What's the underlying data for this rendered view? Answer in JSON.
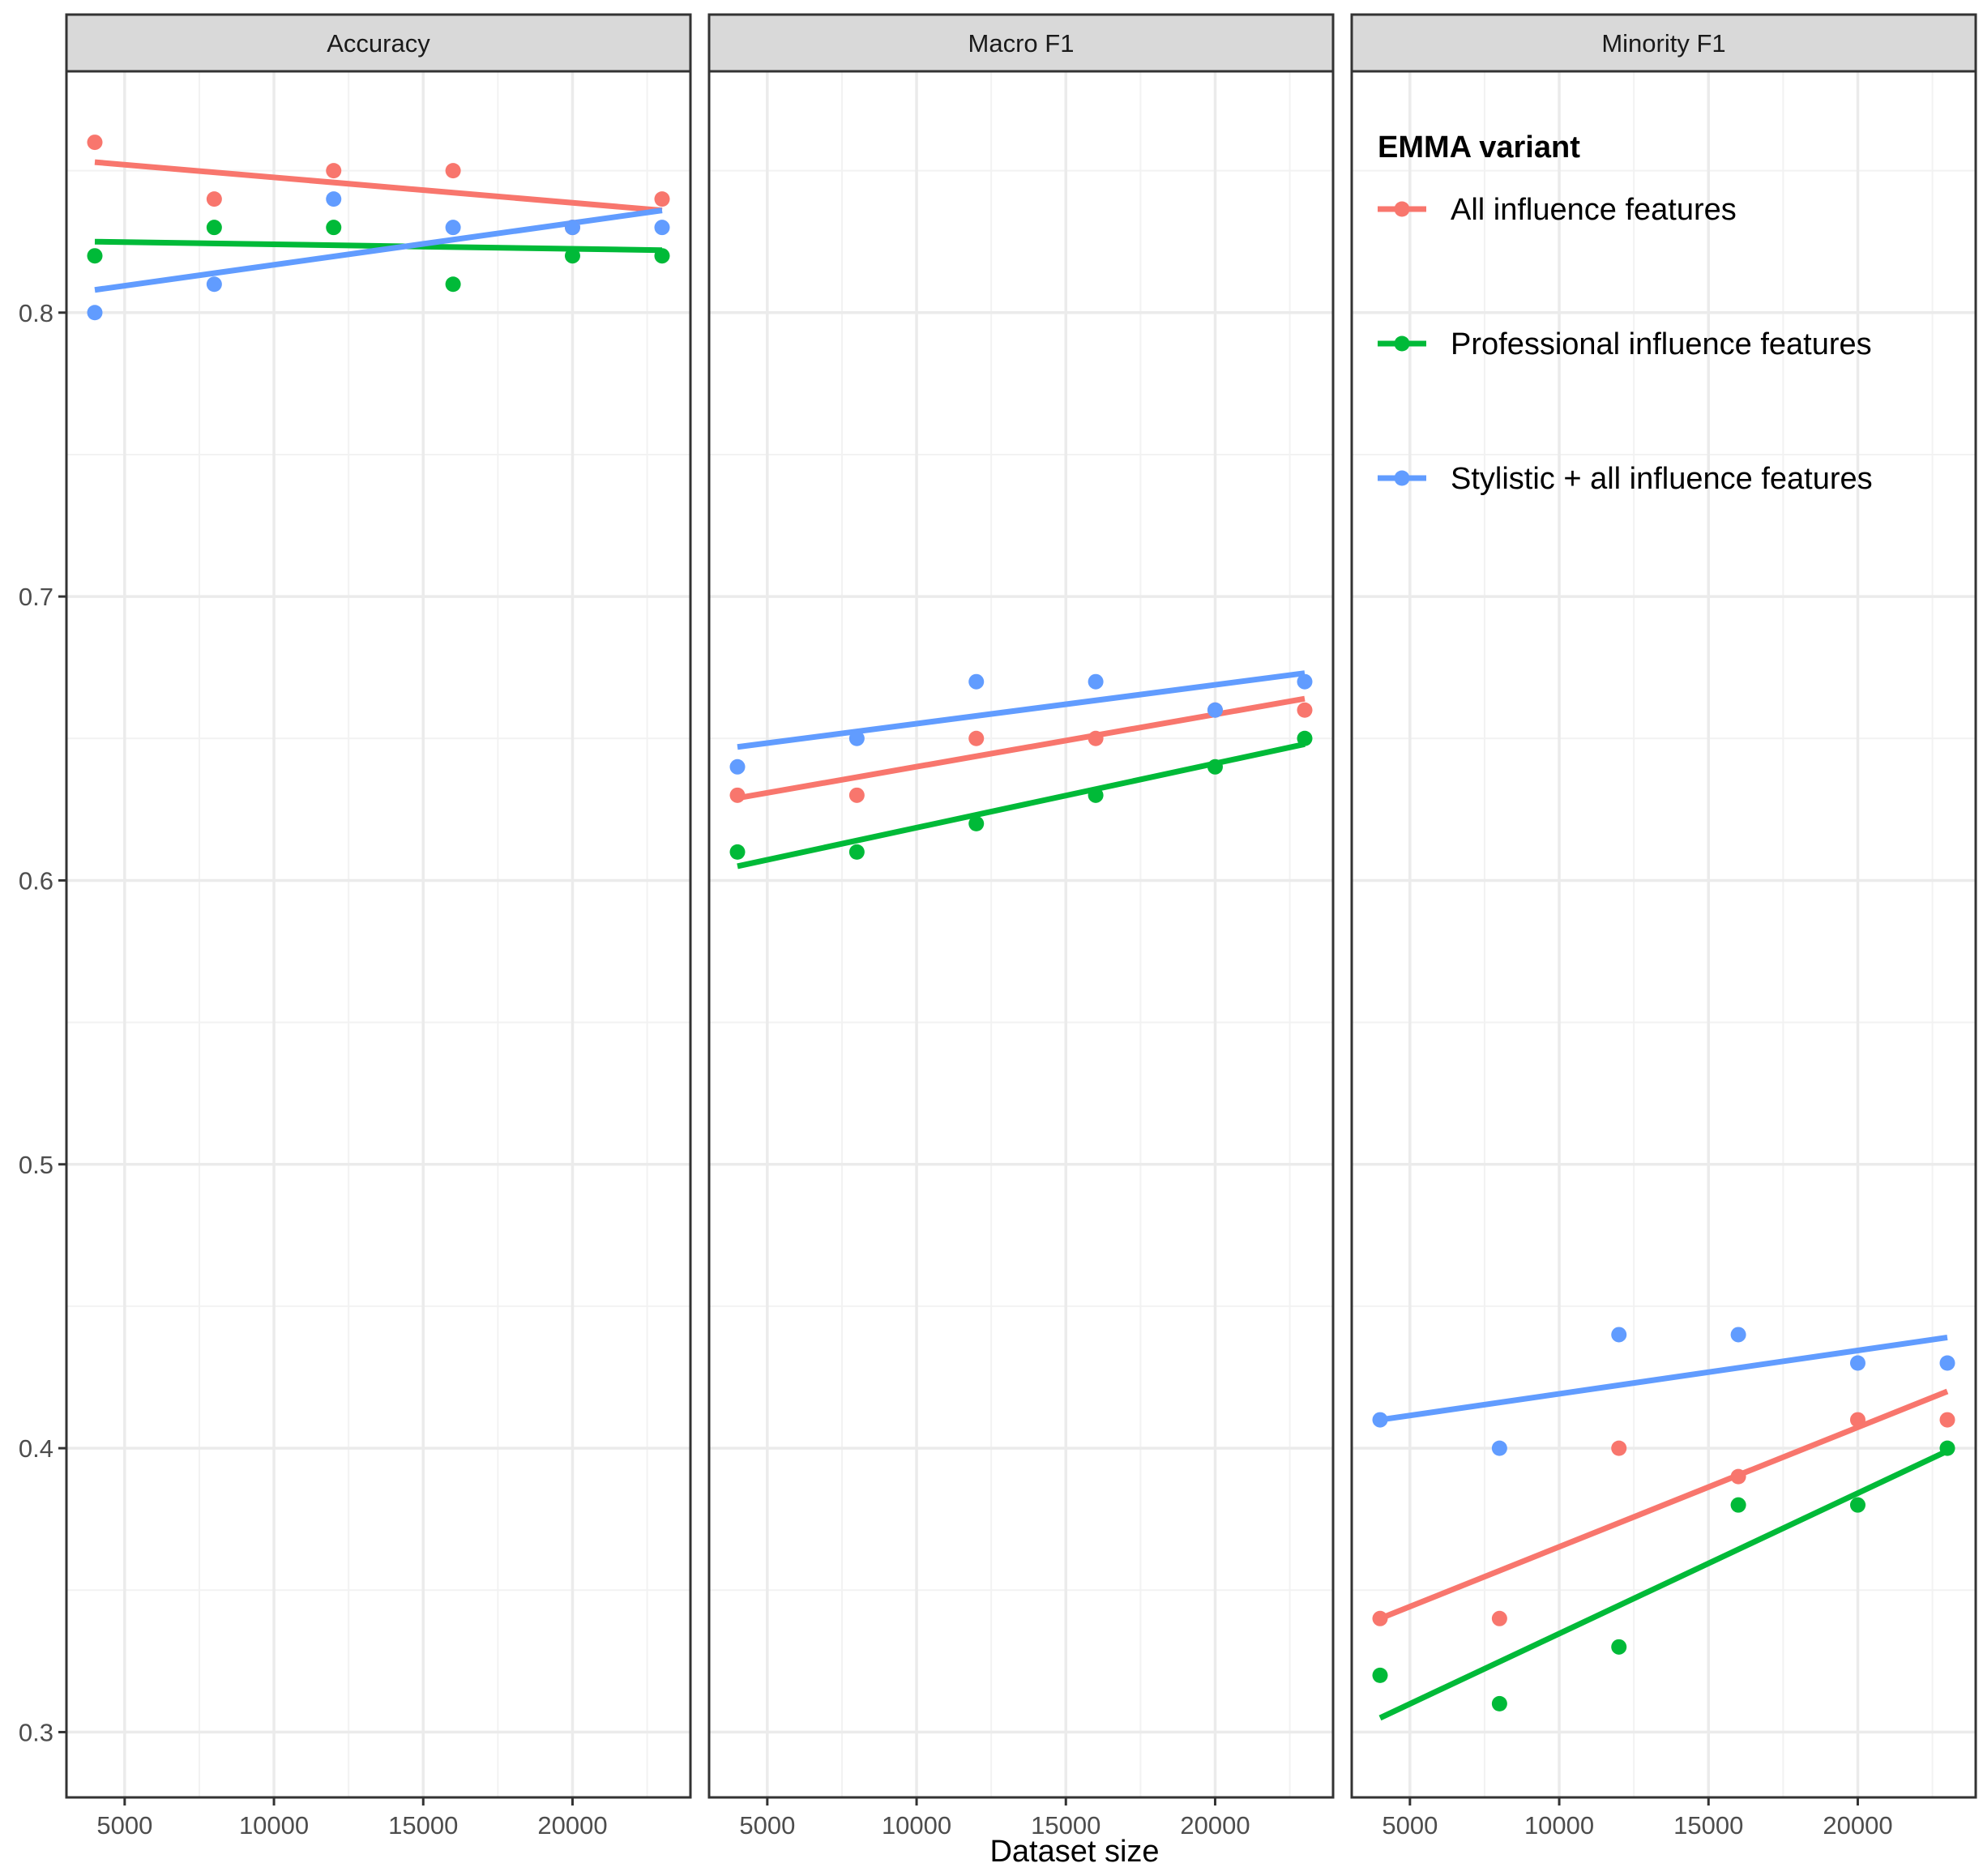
{
  "chart_data": {
    "type": "scatter",
    "facets": [
      "Accuracy",
      "Macro F1",
      "Minority F1"
    ],
    "xlabel": "Dataset size",
    "ylabel": "",
    "x_ticks": [
      5000,
      10000,
      15000,
      20000
    ],
    "y_ticks": [
      0.3,
      0.4,
      0.5,
      0.6,
      0.7,
      0.8
    ],
    "ylim": [
      0.277,
      0.885
    ],
    "xlim": [
      3050,
      23950
    ],
    "grid": true,
    "legend_title": "EMMA variant",
    "legend_position": "inside-top-right",
    "x": [
      4000,
      8000,
      12000,
      16000,
      20000,
      23000
    ],
    "series": [
      {
        "name": "All influence features",
        "color": "#F8766D",
        "values": {
          "Accuracy": [
            0.86,
            0.84,
            0.85,
            0.85,
            0.83,
            0.84
          ],
          "Macro F1": [
            0.63,
            0.63,
            0.65,
            0.65,
            0.66,
            0.66
          ],
          "Minority F1": [
            0.34,
            0.34,
            0.4,
            0.39,
            0.41,
            0.41
          ]
        },
        "fit": {
          "Accuracy": [
            0.853,
            0.836
          ],
          "Macro F1": [
            0.629,
            0.664
          ],
          "Minority F1": [
            0.34,
            0.42
          ]
        }
      },
      {
        "name": "Professional influence features",
        "color": "#00BA38",
        "values": {
          "Accuracy": [
            0.82,
            0.83,
            0.83,
            0.81,
            0.82,
            0.82
          ],
          "Macro F1": [
            0.61,
            0.61,
            0.62,
            0.63,
            0.64,
            0.65
          ],
          "Minority F1": [
            0.32,
            0.31,
            0.33,
            0.38,
            0.38,
            0.4
          ]
        },
        "fit": {
          "Accuracy": [
            0.825,
            0.822
          ],
          "Macro F1": [
            0.605,
            0.648
          ],
          "Minority F1": [
            0.305,
            0.399
          ]
        }
      },
      {
        "name": "Stylistic + all influence features",
        "color": "#619CFF",
        "values": {
          "Accuracy": [
            0.8,
            0.81,
            0.84,
            0.83,
            0.83,
            0.83
          ],
          "Macro F1": [
            0.64,
            0.65,
            0.67,
            0.67,
            0.66,
            0.67
          ],
          "Minority F1": [
            0.41,
            0.4,
            0.44,
            0.44,
            0.43,
            0.43
          ]
        },
        "fit": {
          "Accuracy": [
            0.808,
            0.836
          ],
          "Macro F1": [
            0.647,
            0.673
          ],
          "Minority F1": [
            0.41,
            0.439
          ]
        }
      }
    ]
  }
}
